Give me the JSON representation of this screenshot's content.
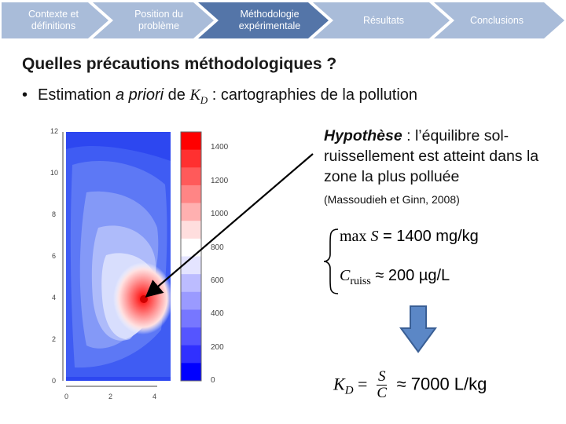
{
  "nav": {
    "steps": [
      {
        "label": "Contexte et définitions",
        "color": "#a9bcd9"
      },
      {
        "label": "Position du problème",
        "color": "#a9bcd9"
      },
      {
        "label": "Méthodologie expérimentale",
        "color": "#5475a8"
      },
      {
        "label": "Résultats",
        "color": "#a9bcd9"
      },
      {
        "label": "Conclusions",
        "color": "#a9bcd9"
      }
    ]
  },
  "slide": {
    "title": "Quelles précautions méthodologiques ?",
    "bullet": {
      "prefix": "Estimation ",
      "italic": "a priori",
      "mid": " de ",
      "kd": "K",
      "kd_sub": "D",
      "suffix": " : cartographies de la pollution"
    },
    "hypothesis": {
      "label": "Hypothèse",
      "text": " : l’équilibre sol-ruissellement est atteint dans la zone la plus polluée"
    },
    "reference": "(Massoudieh et Ginn, 2008)",
    "eq1": {
      "lhs": "max ",
      "var": "S",
      "rhs": " = 1400 mg/kg"
    },
    "eq2": {
      "var": "C",
      "sub": "ruiss",
      "rhs": " ≈ 200 µg/L"
    },
    "eqf": {
      "lhs": "K",
      "lhs_sub": "D",
      "eq": " = ",
      "num": "S",
      "den": "C",
      "rhs": " ≈ 7000 L/kg"
    }
  },
  "map": {
    "y_ticks": [
      "12",
      "10",
      "8",
      "6",
      "4",
      "2",
      "0"
    ],
    "x_ticks": [
      "0",
      "2",
      "4"
    ],
    "colorbar_labels": [
      "1400",
      "1200",
      "1000",
      "800",
      "600",
      "400",
      "200",
      "0"
    ],
    "colorbar_colors": [
      "#ff0000",
      "#ff3030",
      "#ff5a5a",
      "#ff8585",
      "#ffb0b0",
      "#ffdede",
      "#ffffff",
      "#e4e4ff",
      "#bcbcff",
      "#9a9aff",
      "#7777ff",
      "#5555ff",
      "#3030ff",
      "#0000ff"
    ]
  },
  "colors": {
    "arrow_fill": "#5b87c6",
    "arrow_stroke": "#3a5f95"
  }
}
